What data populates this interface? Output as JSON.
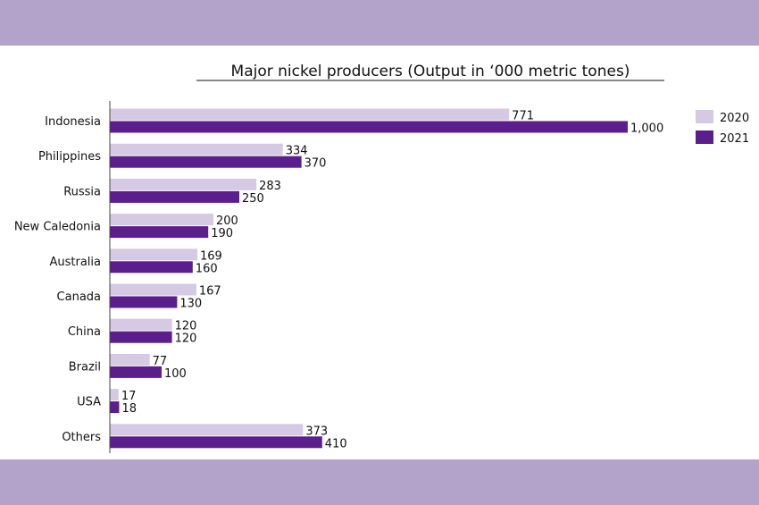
{
  "colors": {
    "series_2020": "#d6c9e3",
    "series_2021": "#5b1e8c",
    "band": "#b3a3ca"
  },
  "chart_data": {
    "type": "bar",
    "orientation": "horizontal",
    "title": "Major nickel producers (Output in ‘000 metric tones)",
    "categories": [
      "Indonesia",
      "Philippines",
      "Russia",
      "New Caledonia",
      "Australia",
      "Canada",
      "China",
      "Brazil",
      "USA",
      "Others"
    ],
    "series": [
      {
        "name": "2020",
        "values": [
          771,
          334,
          283,
          200,
          169,
          167,
          120,
          77,
          17,
          373
        ],
        "labels": [
          "771",
          "334",
          "283",
          "200",
          "169",
          "167",
          "120",
          "77",
          "17",
          "373"
        ]
      },
      {
        "name": "2021",
        "values": [
          1000,
          370,
          250,
          190,
          160,
          130,
          120,
          100,
          18,
          410
        ],
        "labels": [
          "1,000",
          "370",
          "250",
          "190",
          "160",
          "130",
          "120",
          "100",
          "18",
          "410"
        ]
      }
    ],
    "xlim": [
      0,
      1000
    ],
    "grid": false,
    "legend": "right"
  }
}
